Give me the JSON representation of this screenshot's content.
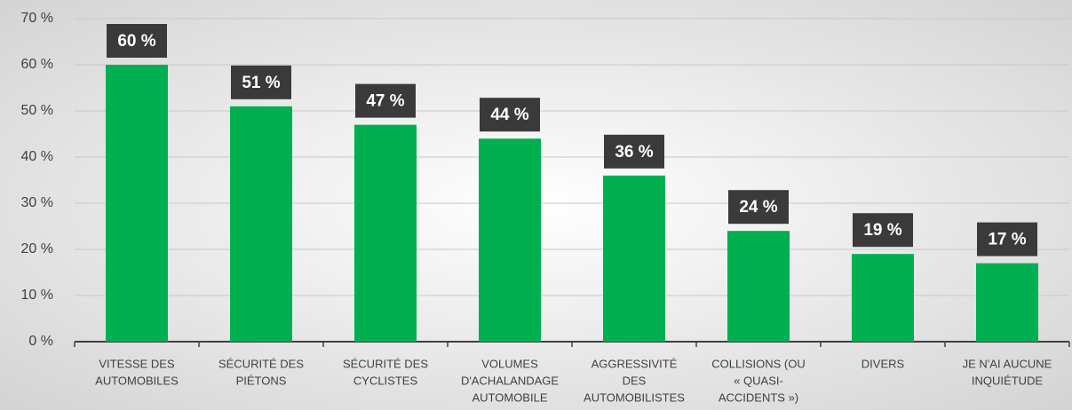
{
  "chart_data": {
    "type": "bar",
    "categories": [
      [
        "VITESSE DES",
        "AUTOMOBILES"
      ],
      [
        "SÉCURITÉ DES",
        "PIÉTONS"
      ],
      [
        "SÉCURITÉ DES",
        "CYCLISTES"
      ],
      [
        "VOLUMES",
        "D'ACHALANDAGE",
        "AUTOMOBILE"
      ],
      [
        "AGGRESSIVITÉ",
        "DES",
        "AUTOMOBILISTES"
      ],
      [
        "COLLISIONS (OU",
        "« QUASI-",
        "ACCIDENTS »)"
      ],
      [
        "DIVERS"
      ],
      [
        "JE N'AI AUCUNE",
        "INQUIÉTUDE"
      ]
    ],
    "values": [
      60,
      51,
      47,
      44,
      36,
      24,
      19,
      17
    ],
    "value_labels": [
      "60 %",
      "51 %",
      "47 %",
      "44 %",
      "36 %",
      "24 %",
      "19 %",
      "17 %"
    ],
    "color": "#00b050",
    "ylim": [
      0,
      70
    ],
    "yticks": [
      {
        "value": 0,
        "label": "0 %"
      },
      {
        "value": 10,
        "label": "10 %"
      },
      {
        "value": 20,
        "label": "20 %"
      },
      {
        "value": 30,
        "label": "30 %"
      },
      {
        "value": 40,
        "label": "40 %"
      },
      {
        "value": 50,
        "label": "50 %"
      },
      {
        "value": 60,
        "label": "60 %"
      },
      {
        "value": 70,
        "label": "70 %"
      }
    ],
    "grid": true
  }
}
